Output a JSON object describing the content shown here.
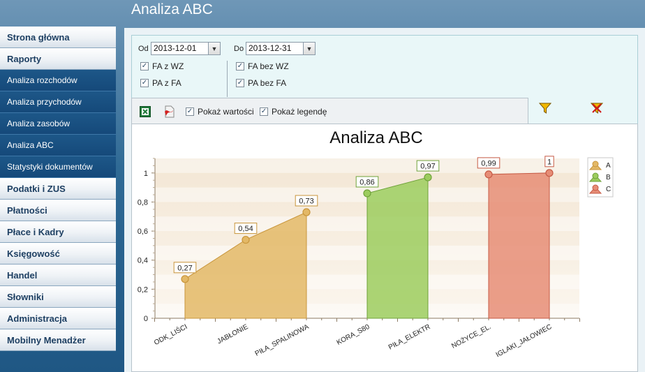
{
  "header": {
    "title": "Analiza ABC"
  },
  "sidebar": {
    "items": [
      {
        "label": "Strona główna",
        "type": "main"
      },
      {
        "label": "Raporty",
        "type": "main"
      },
      {
        "label": "Analiza rozchodów",
        "type": "sub"
      },
      {
        "label": "Analiza przychodów",
        "type": "sub"
      },
      {
        "label": "Analiza zasobów",
        "type": "sub"
      },
      {
        "label": "Analiza ABC",
        "type": "sub"
      },
      {
        "label": "Statystyki dokumentów",
        "type": "sub"
      },
      {
        "label": "Podatki i ZUS",
        "type": "main"
      },
      {
        "label": "Płatności",
        "type": "main"
      },
      {
        "label": "Płace i Kadry",
        "type": "main"
      },
      {
        "label": "Księgowość",
        "type": "main"
      },
      {
        "label": "Handel",
        "type": "main"
      },
      {
        "label": "Słowniki",
        "type": "main"
      },
      {
        "label": "Administracja",
        "type": "main"
      },
      {
        "label": "Mobilny Menadżer",
        "type": "main"
      }
    ]
  },
  "filters": {
    "from_label": "Od",
    "from_value": "2013-12-01",
    "to_label": "Do",
    "to_value": "2013-12-31",
    "checkboxes": [
      {
        "label": "FA z WZ",
        "checked": true
      },
      {
        "label": "PA z FA",
        "checked": true
      },
      {
        "label": "FA bez WZ",
        "checked": true
      },
      {
        "label": "PA bez FA",
        "checked": true
      }
    ],
    "icons": [
      "filter-apply-icon",
      "filter-clear-icon"
    ]
  },
  "toolbar": {
    "icons": [
      "excel-export-icon",
      "pdf-export-icon"
    ],
    "show_values_label": "Pokaż wartości",
    "show_values_checked": true,
    "show_legend_label": "Pokaż legendę",
    "show_legend_checked": true
  },
  "chart_data": {
    "type": "area",
    "title": "Analiza ABC",
    "xlabel": "",
    "ylabel": "",
    "ylim": [
      0,
      1.1
    ],
    "yticks": [
      "0",
      "0,2",
      "0,4",
      "0,6",
      "0,8",
      "1"
    ],
    "categories": [
      "ODK_LIŚCI",
      "JABŁONIE",
      "PIŁA_SPALINOWA",
      "KORA_S80",
      "PIŁA_ELEKTR",
      "NOŻYCE_EL.",
      "IGLAKI_JAŁOWIEC"
    ],
    "series": [
      {
        "name": "A",
        "color": "#e3b866",
        "points": [
          {
            "x": 0,
            "y": 0.27,
            "label": "0,27"
          },
          {
            "x": 1,
            "y": 0.54,
            "label": "0,54"
          },
          {
            "x": 2,
            "y": 0.73,
            "label": "0,73"
          }
        ]
      },
      {
        "name": "B",
        "color": "#9ccc5e",
        "points": [
          {
            "x": 3,
            "y": 0.86,
            "label": "0,86"
          },
          {
            "x": 4,
            "y": 0.97,
            "label": "0,97"
          }
        ]
      },
      {
        "name": "C",
        "color": "#e68d76",
        "points": [
          {
            "x": 5,
            "y": 0.99,
            "label": "0,99"
          },
          {
            "x": 6,
            "y": 1.0,
            "label": "1"
          }
        ]
      }
    ],
    "legend_position": "right",
    "grid": false
  }
}
